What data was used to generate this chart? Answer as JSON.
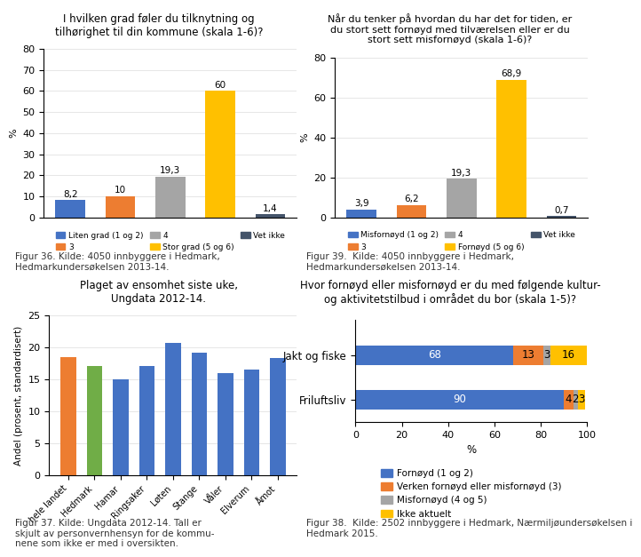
{
  "chart1": {
    "title": "I hvilken grad føler du tilknytning og\ntilhørighet til din kommune (skala 1-6)?",
    "categories": [
      "Liten grad (1 og 2)",
      "3",
      "4",
      "Stor grad (5 og 6)",
      "Vet ikke"
    ],
    "values": [
      8.2,
      10,
      19.3,
      60,
      1.4
    ],
    "colors": [
      "#4472C4",
      "#ED7D31",
      "#A5A5A5",
      "#FFC000",
      "#44546A"
    ],
    "ylim": [
      0,
      80
    ],
    "yticks": [
      0,
      10,
      20,
      30,
      40,
      50,
      60,
      70,
      80
    ],
    "ylabel": "%",
    "caption": "Figur 36. Kilde: 4050 innbyggere i Hedmark,\nHedmarkundersøkelsen 2013-14."
  },
  "chart2": {
    "title": "Når du tenker på hvordan du har det for tiden, er\ndu stort sett fornøyd med tilværelsen eller er du\nstort sett misfornøyd (skala 1-6)?",
    "categories": [
      "Misfornøyd (1 og 2)",
      "3",
      "4",
      "Fornøyd (5 og 6)",
      "Vet ikke"
    ],
    "values": [
      3.9,
      6.2,
      19.3,
      68.9,
      0.7
    ],
    "colors": [
      "#4472C4",
      "#ED7D31",
      "#A5A5A5",
      "#FFC000",
      "#44546A"
    ],
    "ylim": [
      0,
      80
    ],
    "yticks": [
      0,
      20,
      40,
      60,
      80
    ],
    "ylabel": "%",
    "caption": "Figur 39.  Kilde: 4050 innbyggere i Hedmark,\nHedmarkundersøkelsen 2013-14."
  },
  "chart3": {
    "title": "Plaget av ensomhet siste uke,\nUngdata 2012-14.",
    "categories": [
      "hele landet",
      "Hedmark",
      "Hamar",
      "Ringsaker",
      "Løten",
      "Stange",
      "Våler",
      "Elverum",
      "Åmot"
    ],
    "values": [
      18.5,
      17.0,
      15.0,
      17.0,
      20.7,
      19.2,
      16.0,
      16.5,
      18.3
    ],
    "colors": [
      "#ED7D31",
      "#70AD47",
      "#4472C4",
      "#4472C4",
      "#4472C4",
      "#4472C4",
      "#4472C4",
      "#4472C4",
      "#4472C4"
    ],
    "ylim": [
      0,
      25
    ],
    "yticks": [
      0,
      5,
      10,
      15,
      20,
      25
    ],
    "ylabel": "Andel (prosent, standardisert)",
    "caption": "Figur 37. Kilde: Ungdata 2012-14. Tall er\nskjult av personvernhensyn for de kommu-\nnene som ikke er med i oversikten."
  },
  "chart4": {
    "title": "Hvor fornøyd eller misfornøyd er du med følgende kultur-\nog aktivitetstilbud i området du bor (skala 1-5)?",
    "categories": [
      "Jakt og fiske",
      "Friluftsliv"
    ],
    "seg_names": [
      "Fornøyd (1 og 2)",
      "Verken fornøyd eller misfornøyd (3)",
      "Misfornøyd (4 og 5)",
      "Ikke aktuelt"
    ],
    "seg_colors": [
      "#4472C4",
      "#ED7D31",
      "#A5A5A5",
      "#FFC000"
    ],
    "seg_values": [
      [
        68,
        90
      ],
      [
        13,
        4
      ],
      [
        3,
        2
      ],
      [
        16,
        3
      ]
    ],
    "label_colors": [
      "white",
      "black",
      "black",
      "black"
    ],
    "xlim": [
      0,
      100
    ],
    "xlabel": "%",
    "caption": "Figur 38.  Kilde: 2502 innbyggere i Hedmark, Nærmiljøundersøkelsen i\nHedmark 2015."
  },
  "background_color": "#FFFFFF",
  "box_color": "#AAAAAA"
}
